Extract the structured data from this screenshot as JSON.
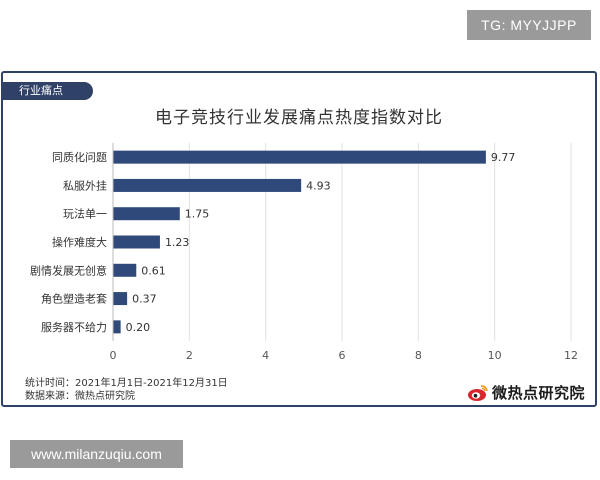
{
  "watermark_top": "TG: MYYJJPP",
  "watermark_bottom": "www.milanzuqiu.com",
  "card": {
    "tag": "行业痛点",
    "title": "电子竞技行业发展痛点热度指数对比",
    "footnote_period": "统计时间：2021年1月1日-2021年12月31日",
    "footnote_source": "数据来源：微热点研究院",
    "brand": "微热点研究院"
  },
  "colors": {
    "bar": "#2f4a7a",
    "frame": "#2f4166",
    "grid": "#e2e2e2",
    "brand_red": "#d8262c"
  },
  "chart_data": {
    "type": "bar",
    "orientation": "horizontal",
    "title": "电子竞技行业发展痛点热度指数对比",
    "categories": [
      "同质化问题",
      "私服外挂",
      "玩法单一",
      "操作难度大",
      "剧情发展无创意",
      "角色塑造老套",
      "服务器不给力"
    ],
    "values": [
      9.77,
      4.93,
      1.75,
      1.23,
      0.61,
      0.37,
      0.2
    ],
    "value_labels": [
      "9.77",
      "4.93",
      "1.75",
      "1.23",
      "0.61",
      "0.37",
      "0.20"
    ],
    "xlim": [
      0,
      12
    ],
    "xticks": [
      "0",
      "2",
      "4",
      "6",
      "8",
      "10",
      "12"
    ],
    "grid": true,
    "xlabel": "",
    "ylabel": ""
  }
}
